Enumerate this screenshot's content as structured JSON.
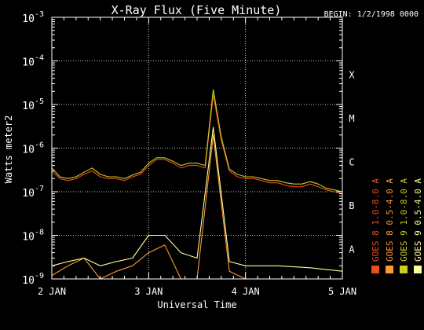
{
  "chart_data": {
    "type": "line",
    "title": "X-Ray Flux (Five Minute)",
    "begin_label": "BEGIN: 1/2/1998 0000",
    "xlabel": "Universal Time",
    "ylabel": "Watts meter2",
    "x_ticks": [
      "2 JAN",
      "3 JAN",
      "4 JAN",
      "5 JAN"
    ],
    "xlim": [
      "1998-01-02 00:00",
      "1998-01-05 00:00"
    ],
    "y_scale": "log",
    "ylim": [
      1e-09,
      0.001
    ],
    "y_tick_values": [
      1e-09,
      1e-08,
      1e-07,
      1e-06,
      1e-05,
      0.0001,
      0.001
    ],
    "y_tick_labels": [
      {
        "base": "10",
        "exp": "-9"
      },
      {
        "base": "10",
        "exp": "-8"
      },
      {
        "base": "10",
        "exp": "-7"
      },
      {
        "base": "10",
        "exp": "-6"
      },
      {
        "base": "10",
        "exp": "-5"
      },
      {
        "base": "10",
        "exp": "-4"
      },
      {
        "base": "10",
        "exp": "-3"
      }
    ],
    "flare_classes": [
      {
        "label": "A",
        "value": 1e-08
      },
      {
        "label": "B",
        "value": 1e-07
      },
      {
        "label": "C",
        "value": 1e-06
      },
      {
        "label": "M",
        "value": 1e-05
      },
      {
        "label": "X",
        "value": 0.0001
      }
    ],
    "grid": {
      "horizontal": "dotted",
      "vertical": "dotted"
    },
    "legend_position": "right",
    "series": [
      {
        "name": "GOES 8 1.0-8.0 A",
        "color": "#e8501e",
        "x": [
          "1998-01-02 00:00",
          "1998-01-02 02:00",
          "1998-01-02 04:00",
          "1998-01-02 06:00",
          "1998-01-02 08:00",
          "1998-01-02 10:00",
          "1998-01-02 12:00",
          "1998-01-02 14:00",
          "1998-01-02 16:00",
          "1998-01-02 18:00",
          "1998-01-02 20:00",
          "1998-01-02 22:00",
          "1998-01-03 00:00",
          "1998-01-03 02:00",
          "1998-01-03 04:00",
          "1998-01-03 06:00",
          "1998-01-03 08:00",
          "1998-01-03 10:00",
          "1998-01-03 12:00",
          "1998-01-03 14:00",
          "1998-01-03 16:00",
          "1998-01-03 18:00",
          "1998-01-03 20:00",
          "1998-01-03 22:00",
          "1998-01-04 00:00",
          "1998-01-04 02:00",
          "1998-01-04 04:00",
          "1998-01-04 06:00",
          "1998-01-04 08:00",
          "1998-01-04 10:00",
          "1998-01-04 12:00",
          "1998-01-04 14:00",
          "1998-01-04 16:00",
          "1998-01-04 18:00",
          "1998-01-04 20:00",
          "1998-01-04 22:00",
          "1998-01-05 00:00"
        ],
        "y": [
          3e-07,
          2e-07,
          1.8e-07,
          2e-07,
          2.5e-07,
          3e-07,
          2.2e-07,
          2e-07,
          2e-07,
          1.8e-07,
          2.2e-07,
          2.5e-07,
          4e-07,
          5.5e-07,
          5.5e-07,
          4.5e-07,
          3.5e-07,
          4e-07,
          4e-07,
          3.5e-07,
          1.7e-05,
          1.5e-06,
          3e-07,
          2.2e-07,
          2e-07,
          2e-07,
          1.8e-07,
          1.6e-07,
          1.6e-07,
          1.4e-07,
          1.3e-07,
          1.3e-07,
          1.5e-07,
          1.3e-07,
          1.1e-07,
          1e-07,
          9e-08
        ]
      },
      {
        "name": "GOES 8 0.5-4.0 A",
        "color": "#ff9933",
        "x": [
          "1998-01-02 00:00",
          "1998-01-02 04:00",
          "1998-01-02 08:00",
          "1998-01-02 12:00",
          "1998-01-02 16:00",
          "1998-01-02 20:00",
          "1998-01-03 00:00",
          "1998-01-03 04:00",
          "1998-01-03 08:00",
          "1998-01-03 12:00",
          "1998-01-03 16:00",
          "1998-01-03 20:00",
          "1998-01-04 00:00",
          "1998-01-04 08:00",
          "1998-01-04 16:00",
          "1998-01-05 00:00"
        ],
        "y": [
          1.2e-09,
          2e-09,
          3e-09,
          1e-09,
          1.5e-09,
          2e-09,
          4e-09,
          6e-09,
          1e-09,
          1e-09,
          2e-06,
          1.5e-09,
          1e-09,
          1e-09,
          1e-09,
          1e-09
        ]
      },
      {
        "name": "GOES 9 0.5-4.0 A",
        "color": "#ffff99",
        "x": [
          "1998-01-02 00:00",
          "1998-01-02 04:00",
          "1998-01-02 08:00",
          "1998-01-02 12:00",
          "1998-01-02 16:00",
          "1998-01-02 20:00",
          "1998-01-03 00:00",
          "1998-01-03 04:00",
          "1998-01-03 08:00",
          "1998-01-03 12:00",
          "1998-01-03 16:00",
          "1998-01-03 20:00",
          "1998-01-04 00:00",
          "1998-01-04 08:00",
          "1998-01-04 16:00",
          "1998-01-05 00:00"
        ],
        "y": [
          2e-09,
          2.5e-09,
          3e-09,
          2e-09,
          2.5e-09,
          3e-09,
          1e-08,
          1e-08,
          4e-09,
          3e-09,
          3e-06,
          2.5e-09,
          2e-09,
          2e-09,
          1.8e-09,
          1.5e-09
        ]
      },
      {
        "name": "GOES 9 1.0-8.0 A",
        "color": "#cccc22",
        "x": [
          "1998-01-02 00:00",
          "1998-01-02 02:00",
          "1998-01-02 04:00",
          "1998-01-02 06:00",
          "1998-01-02 08:00",
          "1998-01-02 10:00",
          "1998-01-02 12:00",
          "1998-01-02 14:00",
          "1998-01-02 16:00",
          "1998-01-02 18:00",
          "1998-01-02 20:00",
          "1998-01-02 22:00",
          "1998-01-03 00:00",
          "1998-01-03 02:00",
          "1998-01-03 04:00",
          "1998-01-03 06:00",
          "1998-01-03 08:00",
          "1998-01-03 10:00",
          "1998-01-03 12:00",
          "1998-01-03 14:00",
          "1998-01-03 16:00",
          "1998-01-03 18:00",
          "1998-01-03 20:00",
          "1998-01-03 22:00",
          "1998-01-04 00:00",
          "1998-01-04 02:00",
          "1998-01-04 04:00",
          "1998-01-04 06:00",
          "1998-01-04 08:00",
          "1998-01-04 10:00",
          "1998-01-04 12:00",
          "1998-01-04 14:00",
          "1998-01-04 16:00",
          "1998-01-04 18:00",
          "1998-01-04 20:00",
          "1998-01-04 22:00",
          "1998-01-05 00:00"
        ],
        "y": [
          3.5e-07,
          2.2e-07,
          2e-07,
          2.2e-07,
          2.8e-07,
          3.5e-07,
          2.5e-07,
          2.2e-07,
          2.2e-07,
          2e-07,
          2.4e-07,
          2.8e-07,
          4.5e-07,
          6e-07,
          6e-07,
          5e-07,
          4e-07,
          4.5e-07,
          4.5e-07,
          4e-07,
          2.2e-05,
          1.8e-06,
          3.3e-07,
          2.5e-07,
          2.2e-07,
          2.2e-07,
          2e-07,
          1.8e-07,
          1.8e-07,
          1.6e-07,
          1.5e-07,
          1.5e-07,
          1.7e-07,
          1.5e-07,
          1.2e-07,
          1.1e-07,
          1e-07
        ]
      }
    ]
  }
}
